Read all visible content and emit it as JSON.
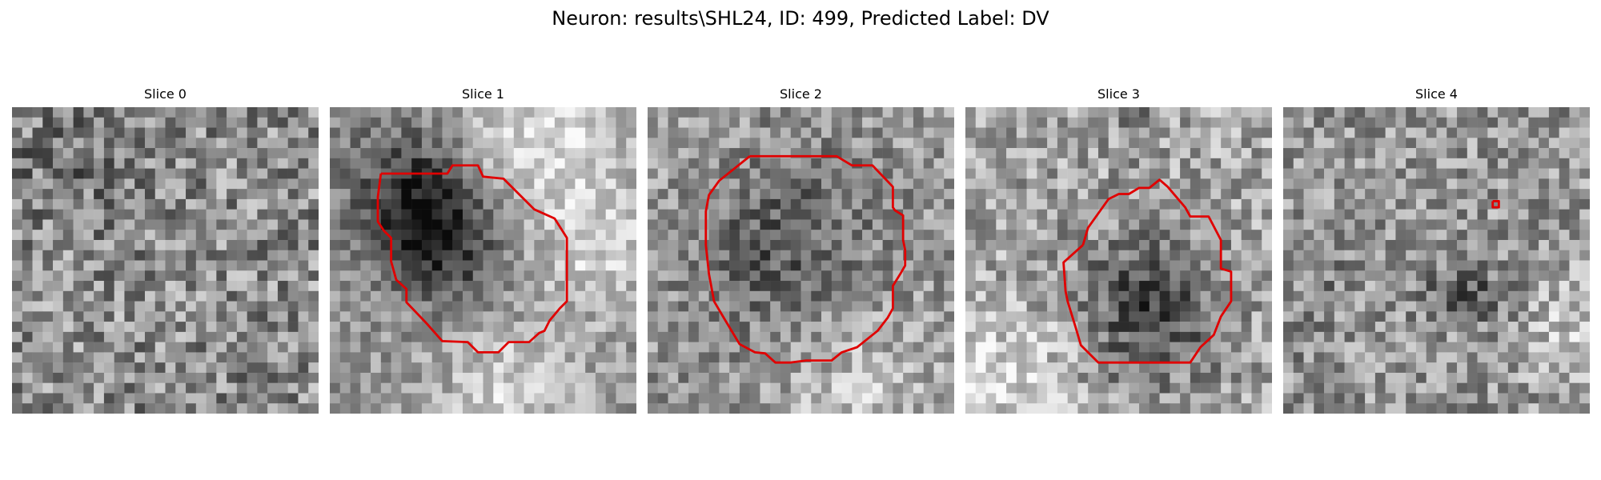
{
  "figure": {
    "title": "Neuron: results\\SHL24, ID: 499, Predicted Label: DV",
    "panels": [
      {
        "label": "Slice 0"
      },
      {
        "label": "Slice 1"
      },
      {
        "label": "Slice 2"
      },
      {
        "label": "Slice 3"
      },
      {
        "label": "Slice 4"
      }
    ],
    "contour_color": "#e00000"
  }
}
